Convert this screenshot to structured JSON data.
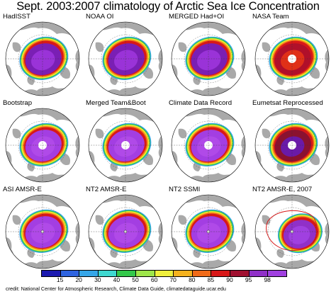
{
  "title": "Sept. 2003:2007 climatology of Arctic Sea Ice Concentration",
  "panels": [
    {
      "label": "HadISST",
      "style": "hadisst"
    },
    {
      "label": "NOAA OI",
      "style": "hadisst"
    },
    {
      "label": "MERGED Had+OI",
      "style": "hadisst"
    },
    {
      "label": "NASA Team",
      "style": "nasateam"
    },
    {
      "label": "Bootstrap",
      "style": "bootstrap"
    },
    {
      "label": "Merged Team&Boot",
      "style": "bootstrap"
    },
    {
      "label": "Climate Data Record",
      "style": "bootstrap"
    },
    {
      "label": "Eumetsat Reprocessed",
      "style": "eumetsat"
    },
    {
      "label": "ASI AMSR-E",
      "style": "amsr"
    },
    {
      "label": "NT2 AMSR-E",
      "style": "amsr"
    },
    {
      "label": "NT2 SSMI",
      "style": "amsr"
    },
    {
      "label": "NT2 AMSR-E, 2007",
      "style": "nt2007"
    }
  ],
  "colorbar": {
    "ticks": [
      "15",
      "20",
      "30",
      "40",
      "50",
      "60",
      "70",
      "80",
      "85",
      "90",
      "95",
      "98"
    ],
    "colors": [
      "#1c1ab0",
      "#2f64e0",
      "#36a6e8",
      "#3fd8d0",
      "#33c84a",
      "#9ee64a",
      "#f0f03c",
      "#f5b21e",
      "#f06a18",
      "#d81818",
      "#a01030",
      "#9030c8",
      "#a040e0"
    ]
  },
  "credit": "credit: National Center for Atmospheric Research, Climate Data Guide, climatedataguide.ucar.edu"
}
